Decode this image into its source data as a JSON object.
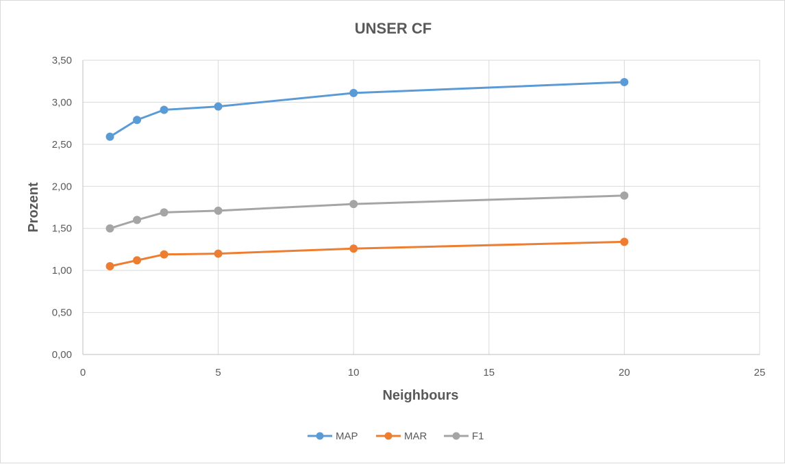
{
  "chart_data": {
    "type": "line",
    "title": "UNSER CF",
    "xlabel": "Neighbours",
    "ylabel": "Prozent",
    "xlim": [
      0,
      25
    ],
    "ylim": [
      0,
      3.5
    ],
    "x_ticks": [
      "0",
      "5",
      "10",
      "15",
      "20",
      "25"
    ],
    "x_tick_values": [
      0,
      5,
      10,
      15,
      20,
      25
    ],
    "y_ticks": [
      "0,00",
      "0,50",
      "1,00",
      "1,50",
      "2,00",
      "2,50",
      "3,00",
      "3,50"
    ],
    "y_tick_values": [
      0,
      0.5,
      1,
      1.5,
      2,
      2.5,
      3,
      3.5
    ],
    "grid": true,
    "legend_position": "bottom",
    "x": [
      1,
      2,
      3,
      5,
      10,
      20
    ],
    "series": [
      {
        "name": "MAP",
        "color": "#5b9bd5",
        "values": [
          2.59,
          2.79,
          2.91,
          2.95,
          3.11,
          3.24
        ]
      },
      {
        "name": "MAR",
        "color": "#ed7d31",
        "values": [
          1.05,
          1.12,
          1.19,
          1.2,
          1.26,
          1.34
        ]
      },
      {
        "name": "F1",
        "color": "#a5a5a5",
        "values": [
          1.5,
          1.6,
          1.69,
          1.71,
          1.79,
          1.89
        ]
      }
    ]
  }
}
